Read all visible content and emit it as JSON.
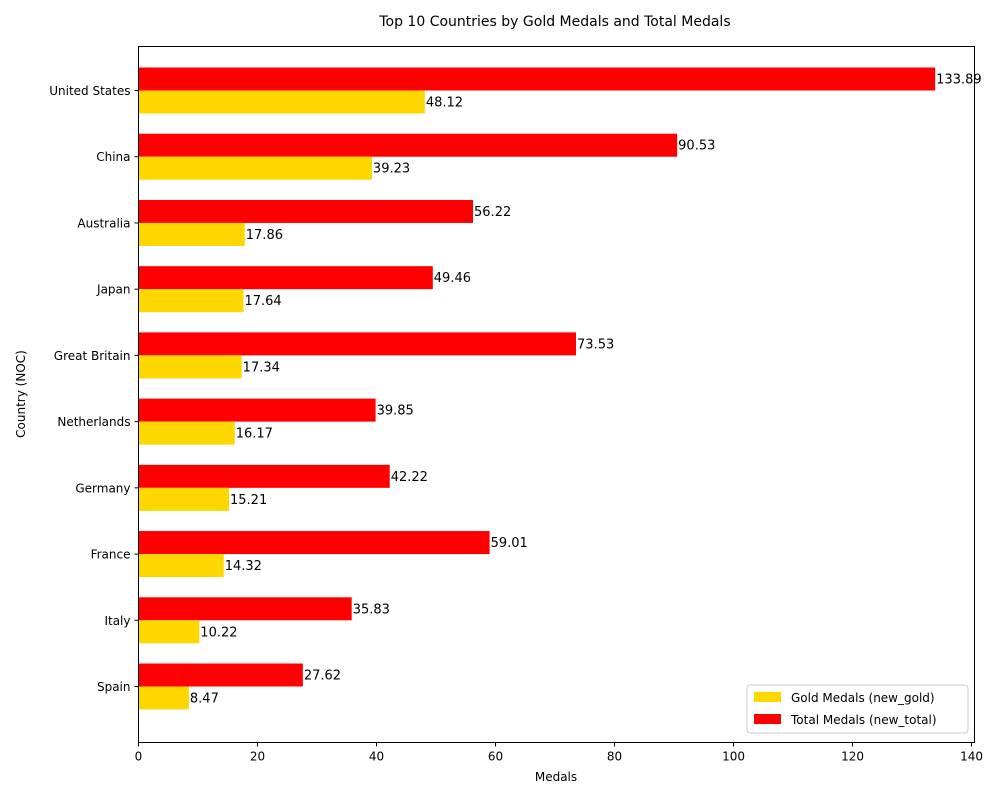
{
  "chart_data": {
    "type": "bar",
    "orientation": "horizontal",
    "title": "Top 10 Countries by Gold Medals and Total Medals",
    "xlabel": "Medals",
    "ylabel": "Country (NOC)",
    "categories": [
      "United States",
      "China",
      "Australia",
      "Japan",
      "Great Britain",
      "Netherlands",
      "Germany",
      "France",
      "Italy",
      "Spain"
    ],
    "series": [
      {
        "name": "Gold Medals (new_gold)",
        "color": "#FFD700",
        "values": [
          48.12,
          39.23,
          17.86,
          17.64,
          17.34,
          16.17,
          15.21,
          14.32,
          10.22,
          8.47
        ],
        "labels": [
          "48.12",
          "39.23",
          "17.86",
          "17.64",
          "17.34",
          "16.17",
          "15.21",
          "14.32",
          "10.22",
          "8.47"
        ]
      },
      {
        "name": "Total Medals (new_total)",
        "color": "#FF0000",
        "values": [
          133.89,
          90.53,
          56.22,
          49.46,
          73.53,
          39.85,
          42.22,
          59.01,
          35.83,
          27.62
        ],
        "labels": [
          "133.89",
          "90.53",
          "56.22",
          "49.46",
          "73.53",
          "39.85",
          "42.22",
          "59.01",
          "35.83",
          "27.62"
        ]
      }
    ],
    "xlim": [
      0,
      140.5
    ],
    "xticks": [
      0,
      20,
      40,
      60,
      80,
      100,
      120,
      140
    ],
    "xtick_labels": [
      "0",
      "20",
      "40",
      "60",
      "80",
      "100",
      "120",
      "140"
    ],
    "grid": false,
    "legend_position": "lower-right"
  }
}
